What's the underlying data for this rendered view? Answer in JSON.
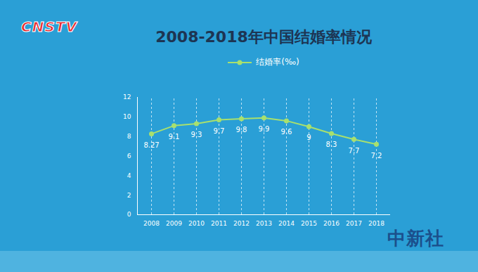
{
  "chart_data": {
    "type": "line",
    "title": "2008-2018年中国结婚率情况",
    "annotations": [
      "CNSTV",
      "中新社"
    ],
    "categories": [
      "2008",
      "2009",
      "2010",
      "2011",
      "2012",
      "2013",
      "2014",
      "2015",
      "2016",
      "2017",
      "2018"
    ],
    "series": [
      {
        "name": "结婚率(‰)",
        "color": "#a8e06e",
        "marker": "circle",
        "values": [
          8.27,
          9.1,
          9.3,
          9.7,
          9.8,
          9.9,
          9.6,
          9,
          8.3,
          7.7,
          7.2
        ]
      }
    ],
    "ylim": [
      0,
      12
    ],
    "yticks": [
      0,
      2,
      4,
      6,
      8,
      10,
      12
    ],
    "grid": true,
    "data_labels": true,
    "legend": "top"
  }
}
